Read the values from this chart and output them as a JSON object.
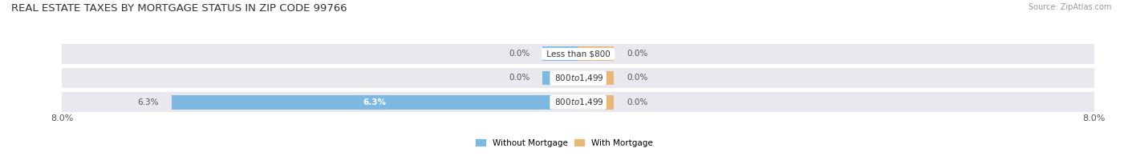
{
  "title": "REAL ESTATE TAXES BY MORTGAGE STATUS IN ZIP CODE 99766",
  "source": "Source: ZipAtlas.com",
  "categories": [
    "Less than $800",
    "$800 to $1,499",
    "$800 to $1,499"
  ],
  "without_mortgage": [
    0.0,
    0.0,
    6.3
  ],
  "with_mortgage": [
    0.0,
    0.0,
    0.0
  ],
  "xlim": 8.0,
  "color_without": "#7db8e0",
  "color_with": "#e8b87a",
  "row_bg_color": "#e8e8ee",
  "legend_without": "Without Mortgage",
  "legend_with": "With Mortgage",
  "title_fontsize": 9.5,
  "label_fontsize": 7.5,
  "tick_fontsize": 8,
  "stub_size": 0.55
}
